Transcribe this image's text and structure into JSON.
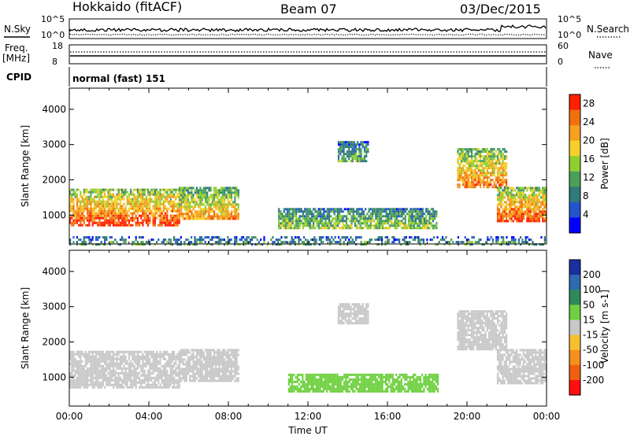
{
  "header": {
    "station": "Hokkaido (fitACF)",
    "beam": "Beam 07",
    "date": "03/Dec/2015"
  },
  "top_panels": {
    "nsky_label": "N.Sky",
    "nsearch_label": "N.Search",
    "noise_tick_top": "10^5",
    "noise_tick_bottom": "10^0",
    "freq_label": "Freq.",
    "freq_unit": "[MHz]",
    "freq_tick_top": "18",
    "freq_tick_bottom": "8",
    "nave_label": "Nave",
    "nave_tick_top": "60",
    "nave_tick_bottom": "0",
    "cpid_label": "CPID",
    "cpid_text": "normal (fast) 151"
  },
  "chart_data": [
    {
      "type": "heatmap",
      "name": "power",
      "xlabel": "",
      "ylabel": "Slant Range [km]",
      "x_ticks": [
        "00:00",
        "04:00",
        "08:00",
        "12:00",
        "16:00",
        "20:00",
        "00:00"
      ],
      "y_ticks": [
        1000,
        2000,
        3000,
        4000
      ],
      "ylim": [
        180,
        4600
      ],
      "xlim_hours": [
        0,
        24
      ],
      "colorbar": {
        "label": "Power [dB]",
        "ticks": [
          4,
          8,
          12,
          16,
          20,
          24,
          28
        ],
        "range": [
          0,
          30
        ],
        "colors": [
          "#0000ff",
          "#2255cc",
          "#2f7a7a",
          "#4aa05a",
          "#8fcf2f",
          "#f5d02a",
          "#f5a020",
          "#f07010",
          "#ff2000"
        ]
      },
      "regions": [
        {
          "t0": 0.0,
          "t1": 5.5,
          "r0": 700,
          "r1": 1750,
          "power": 25
        },
        {
          "t0": 5.5,
          "t1": 8.5,
          "r0": 900,
          "r1": 1800,
          "power": 20
        },
        {
          "t0": 10.5,
          "t1": 18.5,
          "r0": 600,
          "r1": 1200,
          "power": 14
        },
        {
          "t0": 13.5,
          "t1": 15.0,
          "r0": 2500,
          "r1": 3100,
          "power": 12
        },
        {
          "t0": 19.5,
          "t1": 22.0,
          "r0": 1800,
          "r1": 2900,
          "power": 22
        },
        {
          "t0": 21.5,
          "t1": 24.0,
          "r0": 800,
          "r1": 1800,
          "power": 25
        },
        {
          "t0": 0.0,
          "t1": 24.0,
          "r0": 180,
          "r1": 400,
          "power": 10
        }
      ]
    },
    {
      "type": "heatmap",
      "name": "velocity",
      "xlabel": "Time UT",
      "ylabel": "Slant Range [km]",
      "x_ticks": [
        "00:00",
        "04:00",
        "08:00",
        "12:00",
        "16:00",
        "20:00",
        "00:00"
      ],
      "y_ticks": [
        1000,
        2000,
        3000,
        4000
      ],
      "ylim": [
        180,
        4600
      ],
      "xlim_hours": [
        0,
        24
      ],
      "colorbar": {
        "label": "Velocity [m s-1]",
        "ticks": [
          200,
          100,
          50,
          15,
          -15,
          -50,
          -100,
          -200
        ],
        "colors": [
          "#1a2fa0",
          "#2e6ab0",
          "#2f8a5a",
          "#6fd040",
          "#c8c8c8",
          "#f5c030",
          "#f59020",
          "#f06010",
          "#ff1010"
        ]
      },
      "regions": [
        {
          "t0": 0.0,
          "t1": 5.5,
          "r0": 700,
          "r1": 1750,
          "velocity": 0
        },
        {
          "t0": 5.5,
          "t1": 8.5,
          "r0": 900,
          "r1": 1800,
          "velocity": 0
        },
        {
          "t0": 11.0,
          "t1": 18.5,
          "r0": 600,
          "r1": 1100,
          "velocity": 30
        },
        {
          "t0": 13.5,
          "t1": 15.0,
          "r0": 2500,
          "r1": 3100,
          "velocity": 0
        },
        {
          "t0": 19.5,
          "t1": 22.0,
          "r0": 1800,
          "r1": 2900,
          "velocity": 0
        },
        {
          "t0": 21.5,
          "t1": 24.0,
          "r0": 800,
          "r1": 1800,
          "velocity": 0
        }
      ]
    }
  ]
}
